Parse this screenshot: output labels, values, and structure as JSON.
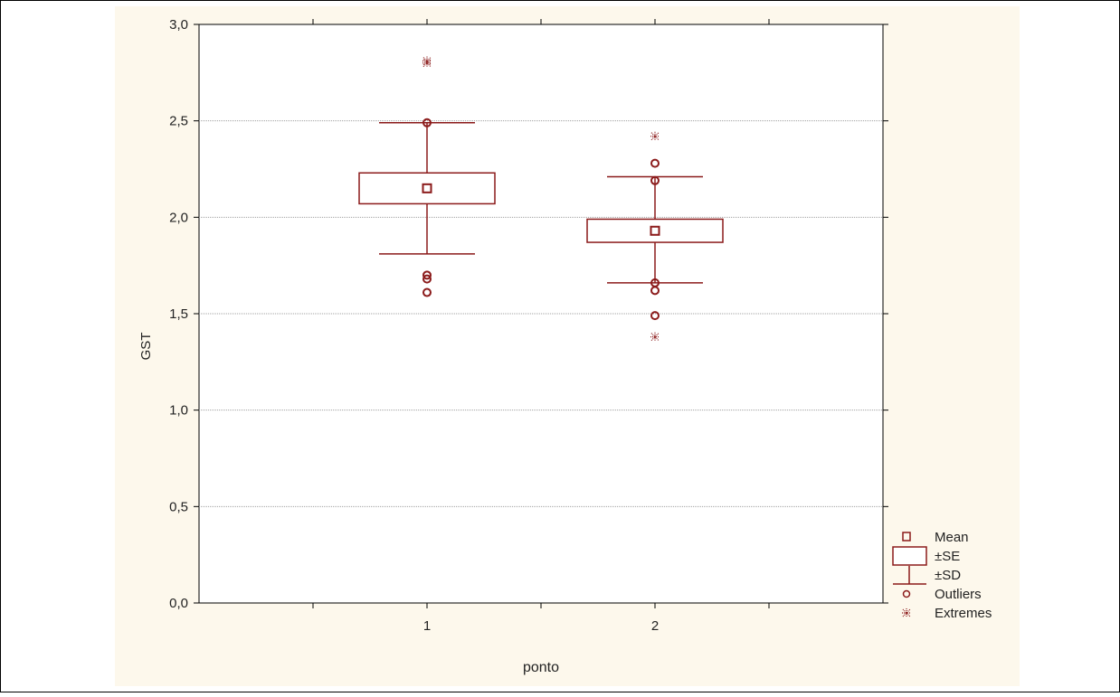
{
  "colors": {
    "background": "#ffffff",
    "chart_background": "#fdf8ec",
    "plot_area": "#ffffff",
    "series": "#8b1a1a",
    "axis": "#000000",
    "grid": "#a0a0a0",
    "text": "#222222"
  },
  "chart_data": {
    "type": "box",
    "xlabel": "ponto",
    "ylabel": "GST",
    "ylim": [
      0,
      3
    ],
    "xlim": [
      0,
      3
    ],
    "y_ticks": [
      0,
      0.5,
      1,
      1.5,
      2,
      2.5,
      3
    ],
    "y_tick_labels": [
      "0,0",
      "0,5",
      "1,0",
      "1,5",
      "2,0",
      "2,5",
      "3,0"
    ],
    "x_ticks": [
      0.5,
      1,
      1.5,
      2,
      2.5
    ],
    "x_tick_labels": [
      "1",
      "2"
    ],
    "x_label_positions": [
      1,
      2
    ],
    "grid": "horizontal",
    "legend_position": "right-bottom",
    "groups": [
      {
        "x": 1,
        "mean": 2.15,
        "se_low": 2.07,
        "se_high": 2.23,
        "sd_low": 1.81,
        "sd_high": 2.49,
        "outliers": [
          2.49,
          1.7,
          1.68,
          1.61
        ],
        "extremes": [
          2.81,
          2.8
        ]
      },
      {
        "x": 2,
        "mean": 1.93,
        "se_low": 1.87,
        "se_high": 1.99,
        "sd_low": 1.66,
        "sd_high": 2.21,
        "outliers": [
          2.28,
          2.19,
          1.66,
          1.62,
          1.49
        ],
        "extremes": [
          2.42,
          1.38
        ]
      }
    ],
    "legend": [
      {
        "symbol": "mean-marker",
        "label": "Mean"
      },
      {
        "symbol": "se-box",
        "label": "±SE"
      },
      {
        "symbol": "sd-whisker",
        "label": "±SD"
      },
      {
        "symbol": "outlier-circle",
        "label": "Outliers"
      },
      {
        "symbol": "extreme-star",
        "label": "Extremes"
      }
    ]
  }
}
